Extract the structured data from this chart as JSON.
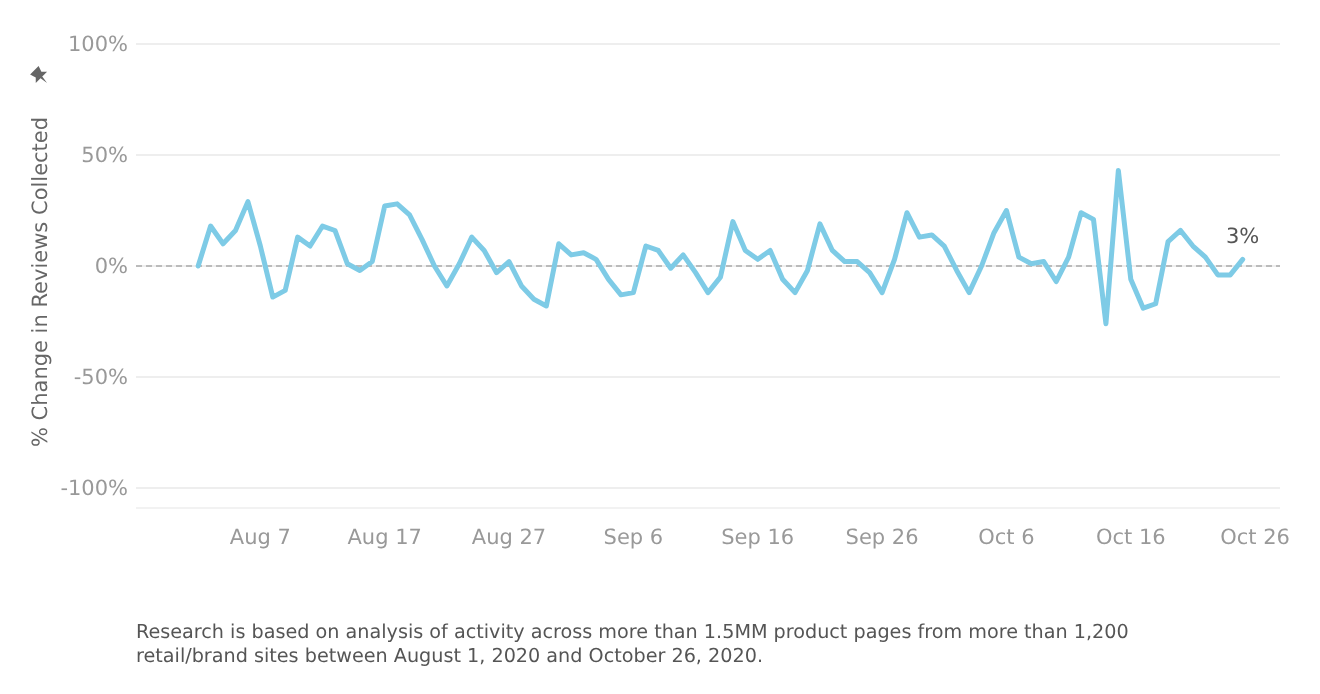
{
  "chart_data": {
    "type": "line",
    "ylabel": "% Change in Reviews Collected",
    "x": [
      "2020-08-02",
      "2020-08-03",
      "2020-08-04",
      "2020-08-05",
      "2020-08-06",
      "2020-08-07",
      "2020-08-08",
      "2020-08-09",
      "2020-08-10",
      "2020-08-11",
      "2020-08-12",
      "2020-08-13",
      "2020-08-14",
      "2020-08-15",
      "2020-08-16",
      "2020-08-17",
      "2020-08-18",
      "2020-08-19",
      "2020-08-20",
      "2020-08-21",
      "2020-08-22",
      "2020-08-23",
      "2020-08-24",
      "2020-08-25",
      "2020-08-26",
      "2020-08-27",
      "2020-08-28",
      "2020-08-29",
      "2020-08-30",
      "2020-08-31",
      "2020-09-01",
      "2020-09-02",
      "2020-09-03",
      "2020-09-04",
      "2020-09-05",
      "2020-09-06",
      "2020-09-07",
      "2020-09-08",
      "2020-09-09",
      "2020-09-10",
      "2020-09-11",
      "2020-09-12",
      "2020-09-13",
      "2020-09-14",
      "2020-09-15",
      "2020-09-16",
      "2020-09-17",
      "2020-09-18",
      "2020-09-19",
      "2020-09-20",
      "2020-09-21",
      "2020-09-22",
      "2020-09-23",
      "2020-09-24",
      "2020-09-25",
      "2020-09-26",
      "2020-09-27",
      "2020-09-28",
      "2020-09-29",
      "2020-09-30",
      "2020-10-01",
      "2020-10-02",
      "2020-10-03",
      "2020-10-04",
      "2020-10-05",
      "2020-10-06",
      "2020-10-07",
      "2020-10-08",
      "2020-10-09",
      "2020-10-10",
      "2020-10-11",
      "2020-10-12",
      "2020-10-13",
      "2020-10-14",
      "2020-10-15",
      "2020-10-16",
      "2020-10-17",
      "2020-10-18",
      "2020-10-19",
      "2020-10-20",
      "2020-10-21",
      "2020-10-22",
      "2020-10-23",
      "2020-10-24",
      "2020-10-25"
    ],
    "series": [
      {
        "color": "#7ecbe6",
        "values": [
          0,
          18,
          10,
          16,
          29,
          9,
          -14,
          -11,
          13,
          9,
          18,
          16,
          1,
          -2,
          2,
          27,
          28,
          23,
          12,
          0,
          -9,
          1,
          13,
          7,
          -3,
          2,
          -9,
          -15,
          -18,
          10,
          5,
          6,
          3,
          -6,
          -13,
          -12,
          9,
          7,
          -1,
          5,
          -3,
          -12,
          -5,
          20,
          7,
          3,
          7,
          -6,
          -12,
          -2,
          19,
          7,
          2,
          2,
          -3,
          -12,
          3,
          24,
          13,
          14,
          9,
          -2,
          -12,
          0,
          15,
          25,
          4,
          1,
          2,
          -7,
          4,
          24,
          21,
          -26,
          43,
          -6,
          -19,
          -17,
          11,
          16,
          9,
          4,
          -4,
          -4,
          3
        ]
      }
    ],
    "xlim": [
      "2020-07-28",
      "2020-10-28"
    ],
    "xticks": [
      {
        "value": "2020-08-07",
        "label": "Aug 7"
      },
      {
        "value": "2020-08-17",
        "label": "Aug 17"
      },
      {
        "value": "2020-08-27",
        "label": "Aug 27"
      },
      {
        "value": "2020-09-06",
        "label": "Sep 6"
      },
      {
        "value": "2020-09-16",
        "label": "Sep 16"
      },
      {
        "value": "2020-09-26",
        "label": "Sep 26"
      },
      {
        "value": "2020-10-06",
        "label": "Oct 6"
      },
      {
        "value": "2020-10-16",
        "label": "Oct 16"
      },
      {
        "value": "2020-10-26",
        "label": "Oct 26"
      }
    ],
    "ylim": [
      -100,
      100
    ],
    "yticks": [
      {
        "value": -100,
        "label": "-100%"
      },
      {
        "value": -50,
        "label": "-50%"
      },
      {
        "value": 0,
        "label": "0%"
      },
      {
        "value": 50,
        "label": "50%"
      },
      {
        "value": 100,
        "label": "100%"
      }
    ],
    "grid": "y",
    "marker": "none",
    "line_style": "solid",
    "ref_lines": [
      {
        "axis": "y",
        "value": 0,
        "color": "#bbbbbb",
        "line_style": "dashed"
      }
    ],
    "annotations": [
      {
        "text": "3%",
        "x": "2020-10-25",
        "y": 3
      },
      "Research is based on analysis of activity across more than 1.5MM product pages from more than 1,200 retail/brand sites between August 1, 2020 and October 26, 2020."
    ]
  }
}
